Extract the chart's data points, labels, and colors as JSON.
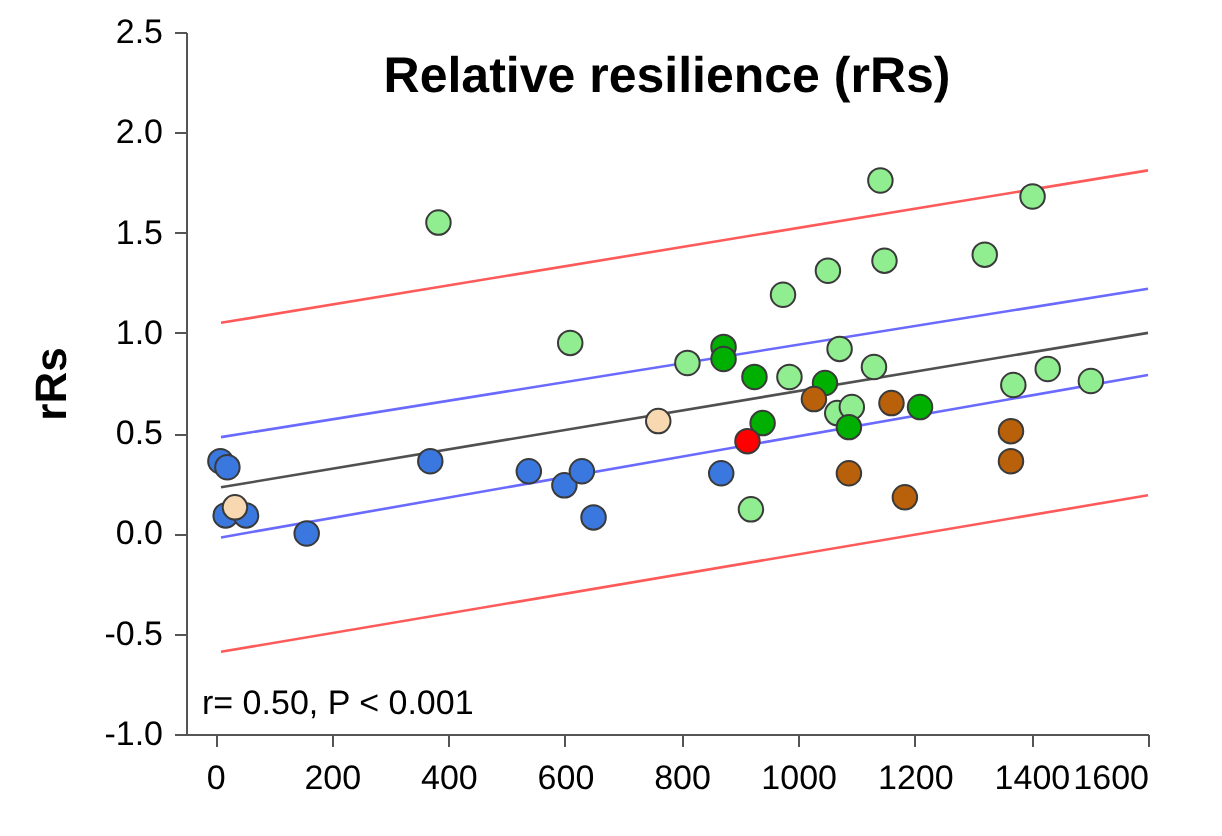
{
  "chart_data": {
    "type": "scatter",
    "title": "Relative resilience (rRs)",
    "ylabel": "rRs",
    "annotations": [
      "r= 0.50, P < 0.001"
    ],
    "xlim": [
      -50,
      1600
    ],
    "xticks": [
      0,
      200,
      400,
      600,
      800,
      1000,
      1200,
      1400,
      1600
    ],
    "ylim": [
      -1.0,
      2.5
    ],
    "yticks": [
      {
        "value": -1.0,
        "label": "-1.0"
      },
      {
        "value": -0.5,
        "label": "-0.5"
      },
      {
        "value": 0,
        "label": "0.0"
      },
      {
        "value": 0.5,
        "label": "0.5"
      },
      {
        "value": 1.0,
        "label": "1.0"
      },
      {
        "value": 1.5,
        "label": "1.5"
      },
      {
        "value": 2.0,
        "label": "2.0"
      },
      {
        "value": 2.5,
        "label": "2.5"
      }
    ],
    "grid": false,
    "marker": "circle",
    "series": [
      {
        "type": "line",
        "marker": "none",
        "color": "#ff5a5a",
        "x": [
          10,
          1600
        ],
        "values": [
          1.05,
          1.81
        ]
      },
      {
        "type": "line",
        "marker": "none",
        "color": "#ff5a5a",
        "x": [
          10,
          1600
        ],
        "values": [
          -0.59,
          0.19
        ]
      },
      {
        "type": "line",
        "marker": "none",
        "color": "#6a6aff",
        "x": [
          10,
          1600
        ],
        "values": [
          0.48,
          1.22
        ]
      },
      {
        "type": "line",
        "marker": "none",
        "color": "#6a6aff",
        "x": [
          10,
          1600
        ],
        "values": [
          -0.02,
          0.79
        ]
      },
      {
        "type": "line",
        "marker": "none",
        "color": "#505050",
        "x": [
          10,
          1600
        ],
        "values": [
          0.23,
          1.0
        ]
      },
      {
        "color": "#3a78e0",
        "x": [
          9,
          21,
          18,
          53,
          157,
          369,
          538,
          599,
          629,
          649,
          868
        ],
        "values": [
          0.36,
          0.33,
          0.09,
          0.09,
          0.0,
          0.36,
          0.31,
          0.24,
          0.31,
          0.08,
          0.3
        ]
      },
      {
        "color": "#f8d8b0",
        "x": [
          34,
          760
        ],
        "values": [
          0.13,
          0.56
        ]
      },
      {
        "color": "#90ee90",
        "x": [
          383,
          609,
          810,
          919,
          974,
          985,
          1051,
          1067,
          1071,
          1092,
          1130,
          1141,
          1148,
          1320,
          1369,
          1402,
          1428,
          1502
        ],
        "values": [
          1.55,
          0.95,
          0.85,
          0.12,
          1.19,
          0.78,
          1.31,
          0.6,
          0.92,
          0.63,
          0.83,
          1.76,
          1.36,
          1.39,
          0.74,
          1.68,
          0.82,
          0.76
        ]
      },
      {
        "color": "#00b000",
        "x": [
          872,
          872,
          925,
          939,
          1046,
          1087,
          1209
        ],
        "values": [
          0.93,
          0.87,
          0.78,
          0.55,
          0.75,
          0.53,
          0.63
        ]
      },
      {
        "color": "#ff0000",
        "x": [
          913
        ],
        "values": [
          0.46
        ]
      },
      {
        "color": "#b8600a",
        "x": [
          1027,
          1087,
          1160,
          1183,
          1365,
          1365
        ],
        "values": [
          0.67,
          0.3,
          0.65,
          0.18,
          0.51,
          0.36
        ]
      }
    ]
  }
}
